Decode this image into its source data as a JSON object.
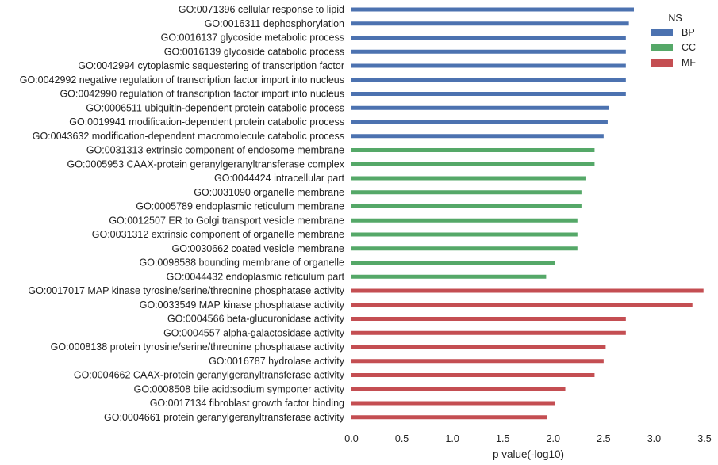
{
  "chart_data": {
    "type": "bar",
    "orientation": "horizontal",
    "categories": [
      "GO:0071396 cellular response to lipid",
      "GO:0016311 dephosphorylation",
      "GO:0016137 glycoside metabolic process",
      "GO:0016139 glycoside catabolic process",
      "GO:0042994 cytoplasmic sequestering of transcription factor",
      "GO:0042992 negative regulation of transcription factor import into nucleus",
      "GO:0042990 regulation of transcription factor import into nucleus",
      "GO:0006511 ubiquitin-dependent protein catabolic process",
      "GO:0019941 modification-dependent protein catabolic process",
      "GO:0043632 modification-dependent macromolecule catabolic process",
      "GO:0031313 extrinsic component of endosome membrane",
      "GO:0005953 CAAX-protein geranylgeranyltransferase complex",
      "GO:0044424 intracellular part",
      "GO:0031090 organelle membrane",
      "GO:0005789 endoplasmic reticulum membrane",
      "GO:0012507 ER to Golgi transport vesicle membrane",
      "GO:0031312 extrinsic component of organelle membrane",
      "GO:0030662 coated vesicle membrane",
      "GO:0098588 bounding membrane of organelle",
      "GO:0044432 endoplasmic reticulum part",
      "GO:0017017 MAP kinase tyrosine/serine/threonine phosphatase activity",
      "GO:0033549 MAP kinase phosphatase activity",
      "GO:0004566 beta-glucuronidase activity",
      "GO:0004557 alpha-galactosidase activity",
      "GO:0008138 protein tyrosine/serine/threonine phosphatase activity",
      "GO:0016787 hydrolase activity",
      "GO:0004662 CAAX-protein geranylgeranyltransferase activity",
      "GO:0008508 bile acid:sodium symporter activity",
      "GO:0017134 fibroblast growth factor binding",
      "GO:0004661 protein geranylgeranyltransferase activity"
    ],
    "values": [
      2.8,
      2.75,
      2.72,
      2.72,
      2.72,
      2.72,
      2.72,
      2.55,
      2.54,
      2.5,
      2.41,
      2.41,
      2.32,
      2.28,
      2.28,
      2.24,
      2.24,
      2.24,
      2.02,
      1.93,
      3.49,
      3.38,
      2.72,
      2.72,
      2.52,
      2.5,
      2.41,
      2.12,
      2.02,
      1.94
    ],
    "groups": [
      "BP",
      "BP",
      "BP",
      "BP",
      "BP",
      "BP",
      "BP",
      "BP",
      "BP",
      "BP",
      "CC",
      "CC",
      "CC",
      "CC",
      "CC",
      "CC",
      "CC",
      "CC",
      "CC",
      "CC",
      "MF",
      "MF",
      "MF",
      "MF",
      "MF",
      "MF",
      "MF",
      "MF",
      "MF",
      "MF"
    ],
    "xlabel": "p value(-log10)",
    "xlim": [
      0,
      3.5
    ],
    "xticks": [
      "0.0",
      "0.5",
      "1.0",
      "1.5",
      "2.0",
      "2.5",
      "3.0",
      "3.5"
    ],
    "grid": false,
    "legend": {
      "title": "NS",
      "position": "top-right",
      "entries": [
        "BP",
        "CC",
        "MF"
      ]
    },
    "colors": {
      "BP": "#4c72b0",
      "CC": "#55a868",
      "MF": "#c44e52"
    }
  }
}
